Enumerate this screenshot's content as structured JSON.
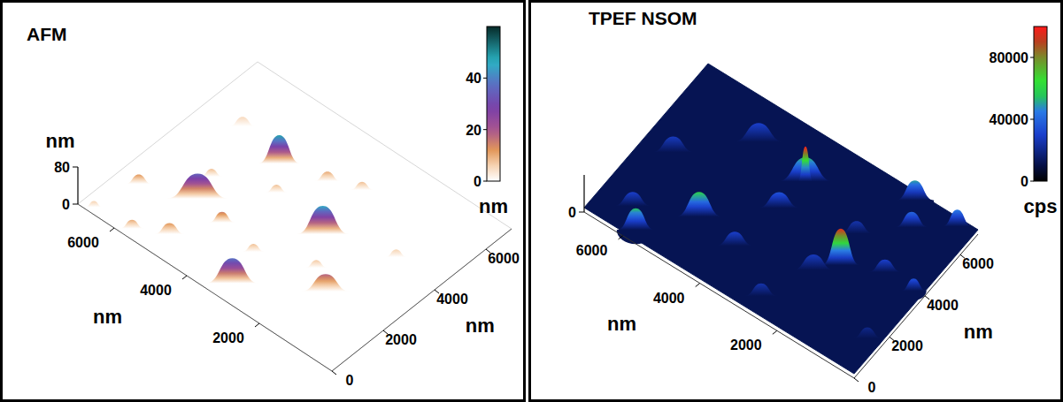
{
  "chart_data": [
    {
      "type": "surface",
      "title": "AFM",
      "xlabel": "nm",
      "ylabel": "nm",
      "zlabel": "nm",
      "xlim": [
        0,
        7000
      ],
      "ylim": [
        0,
        7000
      ],
      "zlim": [
        0,
        80
      ],
      "xticks": [
        2000,
        4000,
        6000
      ],
      "yticks": [
        0,
        2000,
        4000,
        6000
      ],
      "zticks": [
        0,
        80
      ],
      "background_level": 0,
      "colorbar": {
        "range": [
          0,
          60
        ],
        "ticks": [
          0,
          20,
          40
        ],
        "label": "nm"
      },
      "features": {
        "x": [
          5300,
          4740,
          2740,
          3170,
          1610,
          6470,
          5720,
          5050,
          4480,
          4230,
          3680,
          2990,
          5510,
          6700,
          3450,
          2200,
          1200,
          6000
        ],
        "y": [
          2260,
          4650,
          3520,
          600,
          2030,
          1620,
          300,
          810,
          2050,
          3820,
          5030,
          5400,
          3100,
          200,
          1820,
          2500,
          4200,
          5000
        ],
        "z": [
          35,
          48,
          45,
          38,
          18,
          12,
          10,
          12,
          15,
          8,
          10,
          8,
          8,
          6,
          8,
          7,
          6,
          5
        ],
        "radius": [
          700,
          480,
          600,
          600,
          550,
          300,
          280,
          350,
          300,
          250,
          300,
          260,
          250,
          200,
          250,
          250,
          250,
          300
        ]
      }
    },
    {
      "type": "surface",
      "title": "TPEF NSOM",
      "xlabel": "nm",
      "ylabel": "nm",
      "xlim": [
        0,
        7000
      ],
      "ylim": [
        0,
        7000
      ],
      "zlim": [
        0,
        100000
      ],
      "xticks": [
        2000,
        4000,
        6000
      ],
      "yticks": [
        0,
        2000,
        4000,
        6000
      ],
      "zticks": [
        0
      ],
      "background_level": 12000,
      "colorbar": {
        "range": [
          0,
          100000
        ],
        "ticks": [
          0,
          40000,
          80000
        ],
        "label": "cps"
      },
      "features": {
        "x": [
          1810,
          3630,
          3630,
          4920,
          5800,
          1500,
          400,
          1160,
          3890,
          3690,
          960,
          200,
          6200,
          2710,
          290,
          6300,
          2200,
          5000,
          2000
        ],
        "y": [
          3190,
          5160,
          5160,
          1960,
          300,
          6700,
          6700,
          5780,
          1730,
          3800,
          3830,
          3800,
          1000,
          650,
          1380,
          3500,
          2500,
          5500,
          4500
        ],
        "z": [
          95000,
          55000,
          100000,
          60000,
          55000,
          50000,
          45000,
          40000,
          30000,
          35000,
          30000,
          35000,
          30000,
          25000,
          20000,
          28000,
          28000,
          30000,
          25000
        ],
        "radius": [
          450,
          650,
          180,
          550,
          450,
          450,
          350,
          400,
          450,
          500,
          400,
          300,
          450,
          400,
          350,
          500,
          500,
          600,
          400
        ]
      }
    }
  ]
}
